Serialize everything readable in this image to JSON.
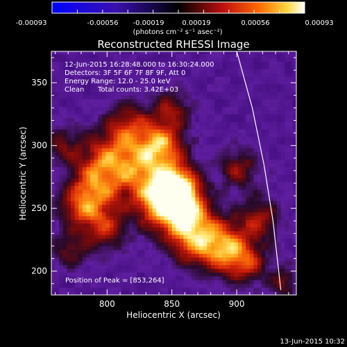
{
  "chart_data": {
    "type": "heatmap",
    "title": "Reconstructed RHESSI Image",
    "xlabel": "Heliocentric X (arcsec)",
    "ylabel": "Heliocentric Y (arcsec)",
    "xlim": [
      757,
      946
    ],
    "ylim": [
      181,
      375
    ],
    "x_ticks": [
      800,
      850,
      900
    ],
    "y_ticks": [
      200,
      250,
      300,
      350
    ],
    "colorbar": {
      "colormap": "RHESSI blue-black-red-yellow-white",
      "range": [
        -0.00093,
        0.00093
      ],
      "tick_labels": [
        "-0.00093",
        "-0.00056",
        "-0.00019",
        "0.00019",
        "0.00056",
        "0.00093"
      ],
      "unit_label": "(photons cm⁻² s⁻¹ asec⁻²)"
    },
    "annotations": {
      "time_range": "12-Jun-2015 16:28:48.000 to 16:30:24.000",
      "detectors": "Detectors: 3F 5F 6F 7F 8F 9F, Att 0",
      "energy": "Energy Range: 12.0 - 25.0 keV",
      "algorithm": "Clean",
      "counts": "Total counts: 3.42E+03",
      "peak": "Position of Peak = [853,264]"
    },
    "peak_position": [
      853,
      264
    ],
    "limb_curve": [
      [
        900,
        375
      ],
      [
        912,
        330
      ],
      [
        921,
        285
      ],
      [
        928,
        240
      ],
      [
        934,
        185
      ]
    ],
    "sources": [
      {
        "x": 853,
        "y": 264,
        "amp": 1.0,
        "sigma": 11
      },
      {
        "x": 842,
        "y": 252,
        "amp": 0.75,
        "sigma": 14
      },
      {
        "x": 840,
        "y": 300,
        "amp": 0.55,
        "sigma": 12
      },
      {
        "x": 828,
        "y": 280,
        "amp": 0.6,
        "sigma": 18
      },
      {
        "x": 862,
        "y": 240,
        "amp": 0.6,
        "sigma": 13
      },
      {
        "x": 868,
        "y": 222,
        "amp": 0.55,
        "sigma": 14
      },
      {
        "x": 890,
        "y": 218,
        "amp": 0.6,
        "sigma": 12
      },
      {
        "x": 905,
        "y": 205,
        "amp": 0.45,
        "sigma": 12
      },
      {
        "x": 790,
        "y": 268,
        "amp": 0.5,
        "sigma": 14
      },
      {
        "x": 780,
        "y": 250,
        "amp": 0.5,
        "sigma": 12
      },
      {
        "x": 797,
        "y": 232,
        "amp": 0.4,
        "sigma": 12
      },
      {
        "x": 800,
        "y": 290,
        "amp": 0.45,
        "sigma": 14
      },
      {
        "x": 815,
        "y": 315,
        "amp": 0.4,
        "sigma": 12
      },
      {
        "x": 848,
        "y": 328,
        "amp": 0.35,
        "sigma": 10
      },
      {
        "x": 900,
        "y": 280,
        "amp": 0.35,
        "sigma": 11
      },
      {
        "x": 915,
        "y": 240,
        "amp": 0.4,
        "sigma": 12
      },
      {
        "x": 765,
        "y": 300,
        "amp": 0.3,
        "sigma": 10
      },
      {
        "x": 770,
        "y": 215,
        "amp": 0.3,
        "sigma": 10
      },
      {
        "x": 935,
        "y": 190,
        "amp": 0.3,
        "sigma": 8
      }
    ]
  },
  "footer": {
    "date_stamp": "13-Jun-2015 10:32"
  }
}
